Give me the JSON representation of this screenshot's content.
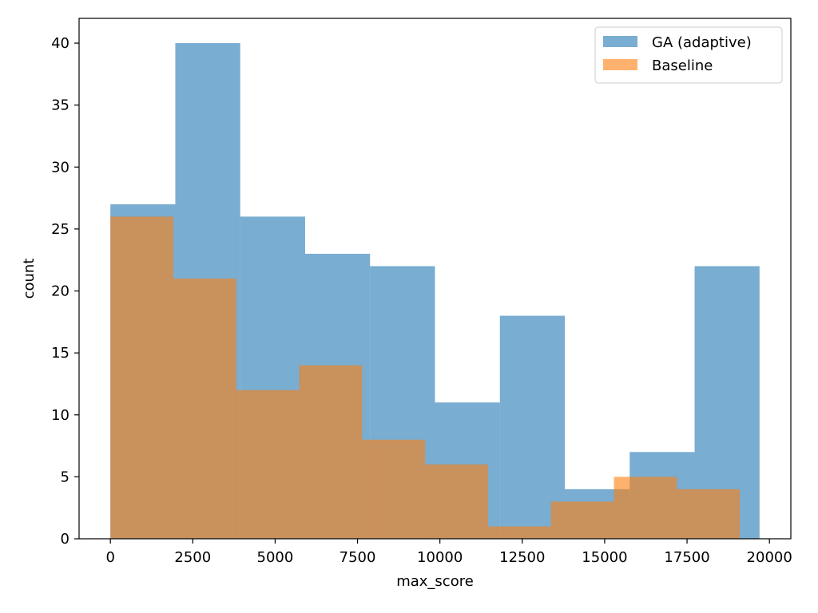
{
  "chart_data": {
    "type": "bar",
    "title": "",
    "xlabel": "max_score",
    "ylabel": "count",
    "xlim": [
      -950,
      20650
    ],
    "ylim": [
      0,
      42
    ],
    "xticks": [
      0,
      2500,
      5000,
      7500,
      10000,
      12500,
      15000,
      17500,
      20000
    ],
    "yticks": [
      0,
      5,
      10,
      15,
      20,
      25,
      30,
      35,
      40
    ],
    "grid": false,
    "legend_position": "top-right",
    "series": [
      {
        "name": "GA (adaptive)",
        "color": "#1f77b4",
        "opacity": 0.6,
        "bin_edges": [
          0,
          1970,
          3940,
          5910,
          7880,
          9850,
          11820,
          13790,
          15760,
          17730,
          19700
        ],
        "values": [
          27,
          40,
          26,
          23,
          22,
          11,
          18,
          4,
          7,
          22
        ]
      },
      {
        "name": "Baseline",
        "color": "#ff7f0e",
        "opacity": 0.6,
        "bin_edges": [
          0,
          1910,
          3820,
          5730,
          7640,
          9550,
          11460,
          13370,
          15280,
          17190,
          19100
        ],
        "values": [
          26,
          21,
          12,
          14,
          8,
          6,
          1,
          3,
          5,
          4
        ]
      }
    ]
  }
}
